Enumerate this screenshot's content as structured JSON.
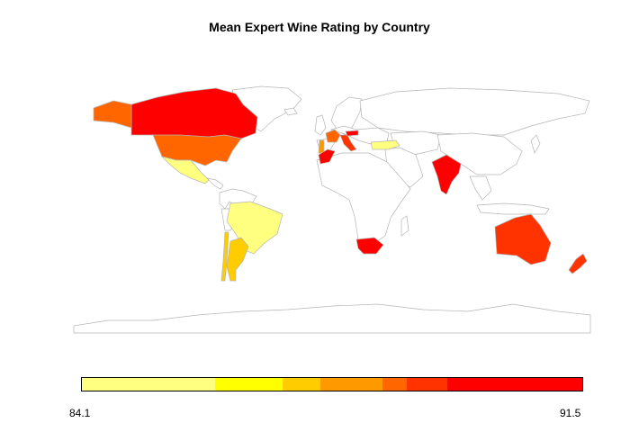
{
  "title": "Mean Expert Wine Rating by Country",
  "legend": {
    "min": "84.1",
    "max": "91.5",
    "bins": [
      {
        "share": 0.267,
        "color": "#ffff80"
      },
      {
        "share": 0.135,
        "color": "#ffff00"
      },
      {
        "share": 0.074,
        "color": "#ffcc00"
      },
      {
        "share": 0.125,
        "color": "#ff9900"
      },
      {
        "share": 0.048,
        "color": "#ff6600"
      },
      {
        "share": 0.081,
        "color": "#ff3300"
      },
      {
        "share": 0.27,
        "color": "#ff0000"
      }
    ]
  },
  "countries": [
    {
      "name": "Canada",
      "color": "#ff0000"
    },
    {
      "name": "Alaska (USA)",
      "color": "#ff6600"
    },
    {
      "name": "United States",
      "color": "#ff6600"
    },
    {
      "name": "Mexico",
      "color": "#ffff80"
    },
    {
      "name": "Brazil",
      "color": "#ffff80"
    },
    {
      "name": "Argentina",
      "color": "#ffcc00"
    },
    {
      "name": "Chile",
      "color": "#ffcc00"
    },
    {
      "name": "Portugal",
      "color": "#ff9900"
    },
    {
      "name": "France",
      "color": "#ff6600"
    },
    {
      "name": "Italy",
      "color": "#ff3300"
    },
    {
      "name": "Austria",
      "color": "#ff0000"
    },
    {
      "name": "Morocco",
      "color": "#ff0000"
    },
    {
      "name": "Turkey",
      "color": "#ffff80"
    },
    {
      "name": "India",
      "color": "#ff0000"
    },
    {
      "name": "South Africa",
      "color": "#ff0000"
    },
    {
      "name": "Australia",
      "color": "#ff3300"
    },
    {
      "name": "New Zealand",
      "color": "#ff3300"
    }
  ]
}
